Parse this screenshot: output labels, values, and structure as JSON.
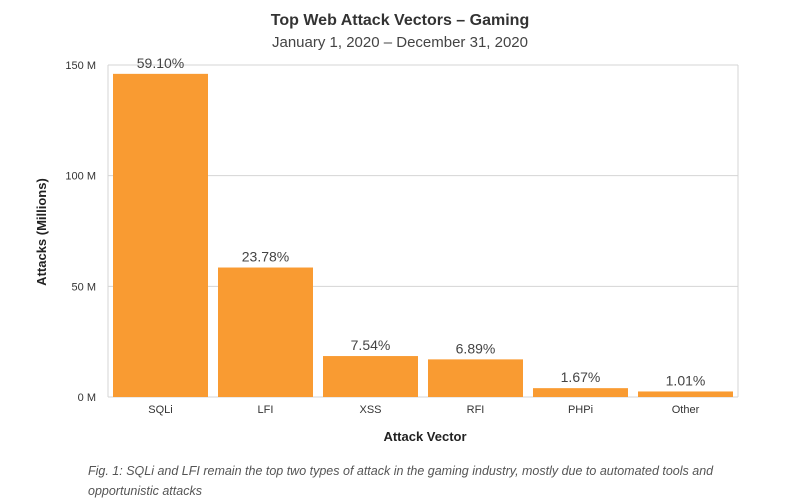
{
  "chart_data": {
    "type": "bar",
    "title": "Top Web Attack Vectors – Gaming",
    "subtitle": "January 1, 2020 – December 31, 2020",
    "xlabel": "Attack Vector",
    "ylabel": "Attacks (Millions)",
    "categories": [
      "SQLi",
      "LFI",
      "XSS",
      "RFI",
      "PHPi",
      "Other"
    ],
    "values": [
      146,
      58.5,
      18.5,
      17,
      4,
      2.5
    ],
    "data_labels": [
      "59.10%",
      "23.78%",
      "7.54%",
      "6.89%",
      "1.67%",
      "1.01%"
    ],
    "ylim": [
      0,
      150
    ],
    "yticks": [
      0,
      50,
      100,
      150
    ],
    "ytick_labels": [
      "0 M",
      "50 M",
      "100 M",
      "150 M"
    ],
    "grid": true,
    "legend": "none",
    "bar_color": "#f99b32"
  },
  "caption": "Fig. 1: SQLi and LFI remain the top two types of attack in the gaming industry, mostly due to automated tools and opportunistic attacks"
}
